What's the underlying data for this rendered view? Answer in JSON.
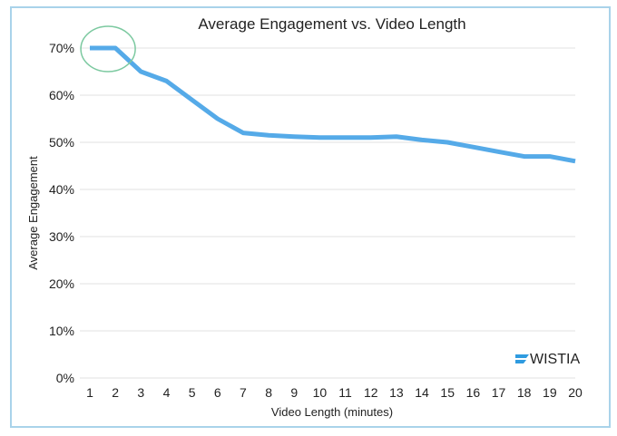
{
  "chart_data": {
    "type": "line",
    "title": "Average Engagement vs. Video Length",
    "xlabel": "Video Length (minutes)",
    "ylabel": "Average Engagement",
    "x": [
      1,
      2,
      3,
      4,
      5,
      6,
      7,
      8,
      9,
      10,
      11,
      12,
      13,
      14,
      15,
      16,
      17,
      18,
      19,
      20
    ],
    "series": [
      {
        "values": [
          70,
          70,
          65,
          63,
          59,
          55,
          52,
          51.5,
          51.2,
          51,
          51,
          51,
          51.2,
          50.5,
          50,
          49,
          48,
          47,
          47,
          46
        ],
        "color": "#55aae8"
      }
    ],
    "ylim": [
      0,
      70
    ],
    "yticks": [
      "0%",
      "10%",
      "20%",
      "30%",
      "40%",
      "50%",
      "60%",
      "70%"
    ],
    "grid": true,
    "annotation": {
      "shape": "circle",
      "around_x": [
        1,
        2
      ],
      "color": "#7cc9a0"
    }
  },
  "logo": {
    "text": "WISTIA",
    "color": "#2f9be0"
  }
}
